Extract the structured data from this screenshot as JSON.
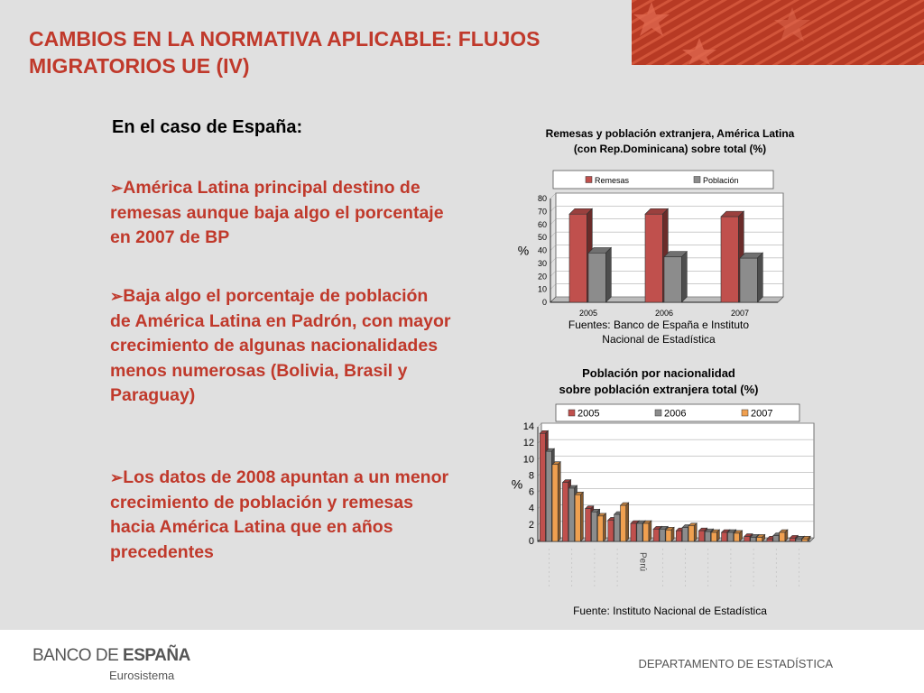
{
  "slide": {
    "title": "CAMBIOS EN LA NORMATIVA APLICABLE: FLUJOS MIGRATORIOS UE (IV)",
    "subhead": "En el caso de España:",
    "bullets": [
      "América Latina principal destino de remesas aunque baja algo el porcentaje en 2007 de BP",
      "Baja algo el porcentaje de población de América Latina en Padrón, con mayor crecimiento de algunas nacionalidades menos numerosas (Bolivia, Brasil y Paraguay)",
      "Los datos de 2008 apuntan a un menor crecimiento de población y remesas hacia América Latina que en años precedentes"
    ],
    "bullet_marker": "➢"
  },
  "footer": {
    "logo_part1": "BANCO DE ",
    "logo_part2": "ESPAÑA",
    "logo_sub": "Eurosistema",
    "department": "DEPARTAMENTO DE ESTADÍSTICA"
  },
  "colors": {
    "accent": "#c0392b",
    "series_red": "#c0504d",
    "series_gray": "#8c8c8c",
    "series_orange": "#f0a050"
  },
  "chart_data": [
    {
      "type": "bar",
      "title_lines": [
        "Remesas y población extranjera, América Latina",
        "(con Rep.Dominicana) sobre total (%)"
      ],
      "source_lines": [
        "Fuentes: Banco de España e Instituto",
        "Nacional de Estadística"
      ],
      "categories": [
        "2005",
        "2006",
        "2007"
      ],
      "series": [
        {
          "name": "Remesas",
          "values": [
            68,
            68,
            66
          ]
        },
        {
          "name": "Población",
          "values": [
            38,
            35,
            34
          ]
        }
      ],
      "ylabel": "%",
      "ylim": [
        0,
        80
      ],
      "yticks": [
        0,
        10,
        20,
        30,
        40,
        50,
        60,
        70,
        80
      ],
      "legend": "top"
    },
    {
      "type": "bar",
      "title_lines": [
        "Población por nacionalidad",
        "sobre población extranjera total (%)"
      ],
      "source": "Fuente: Instituto Nacional de Estadística",
      "categories": [
        "",
        "",
        "",
        "",
        "Perú",
        "",
        "",
        "",
        "",
        "",
        "",
        ""
      ],
      "series": [
        {
          "name": "2005",
          "values": [
            13.2,
            7.2,
            4.0,
            2.6,
            2.2,
            1.5,
            1.3,
            1.3,
            1.1,
            0.6,
            0.3,
            0.4
          ]
        },
        {
          "name": "2006",
          "values": [
            11.0,
            6.5,
            3.6,
            3.3,
            2.2,
            1.5,
            1.7,
            1.2,
            1.1,
            0.5,
            0.7,
            0.3
          ]
        },
        {
          "name": "2007",
          "values": [
            9.4,
            5.7,
            3.1,
            4.4,
            2.2,
            1.4,
            1.9,
            1.1,
            1.0,
            0.5,
            1.1,
            0.3
          ]
        }
      ],
      "ylabel": "%",
      "ylim": [
        0,
        14
      ],
      "yticks": [
        0,
        2,
        4,
        6,
        8,
        10,
        12,
        14
      ],
      "legend": "top"
    }
  ]
}
